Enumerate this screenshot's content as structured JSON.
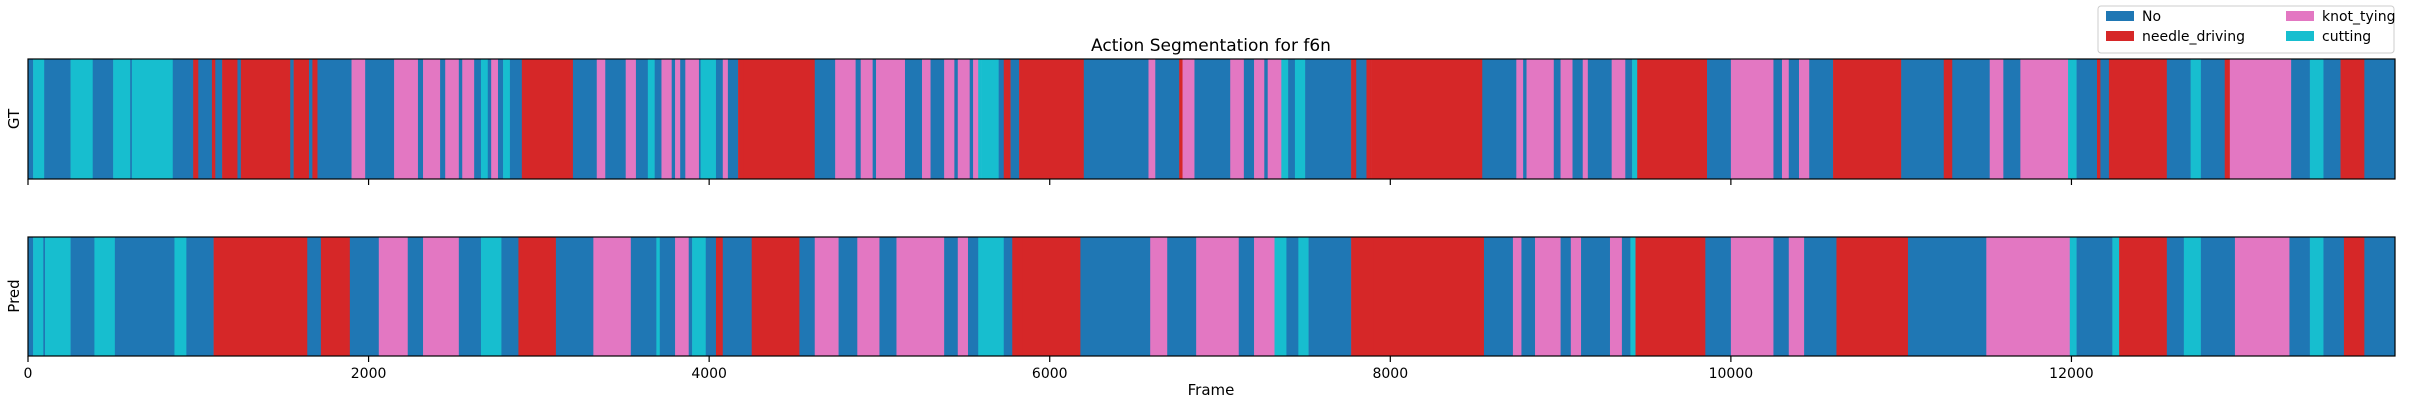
{
  "chart_data": {
    "type": "action-segmentation",
    "title": "Action Segmentation for f6n",
    "xlabel": "Frame",
    "xlim": [
      0,
      13900
    ],
    "xticks": [
      0,
      2000,
      4000,
      6000,
      8000,
      10000,
      12000
    ],
    "tick_labels": [
      "0",
      "2000",
      "4000",
      "6000",
      "8000",
      "10000",
      "12000"
    ],
    "grid": false,
    "legend_position": "top-right",
    "classes": [
      {
        "id": 0,
        "name": "No",
        "color": "#1f77b4"
      },
      {
        "id": 1,
        "name": "needle_driving",
        "color": "#d62728"
      },
      {
        "id": 2,
        "name": "knot_tying",
        "color": "#e377c2"
      },
      {
        "id": 3,
        "name": "cutting",
        "color": "#17becf"
      }
    ],
    "rows": [
      {
        "name": "GT",
        "segments": [
          [
            0,
            30,
            0
          ],
          [
            30,
            95,
            3
          ],
          [
            95,
            250,
            0
          ],
          [
            250,
            380,
            3
          ],
          [
            380,
            500,
            0
          ],
          [
            500,
            600,
            3
          ],
          [
            600,
            610,
            0
          ],
          [
            610,
            850,
            3
          ],
          [
            850,
            970,
            0
          ],
          [
            970,
            1000,
            1
          ],
          [
            1000,
            1080,
            0
          ],
          [
            1080,
            1100,
            1
          ],
          [
            1100,
            1140,
            0
          ],
          [
            1140,
            1230,
            1
          ],
          [
            1230,
            1250,
            0
          ],
          [
            1250,
            1540,
            1
          ],
          [
            1540,
            1560,
            0
          ],
          [
            1560,
            1650,
            1
          ],
          [
            1650,
            1670,
            0
          ],
          [
            1670,
            1700,
            1
          ],
          [
            1700,
            1900,
            0
          ],
          [
            1900,
            1980,
            2
          ],
          [
            1980,
            2150,
            0
          ],
          [
            2150,
            2290,
            2
          ],
          [
            2290,
            2320,
            0
          ],
          [
            2320,
            2420,
            2
          ],
          [
            2420,
            2450,
            0
          ],
          [
            2450,
            2530,
            2
          ],
          [
            2530,
            2550,
            0
          ],
          [
            2550,
            2620,
            2
          ],
          [
            2620,
            2660,
            0
          ],
          [
            2660,
            2700,
            3
          ],
          [
            2700,
            2720,
            0
          ],
          [
            2720,
            2760,
            2
          ],
          [
            2760,
            2790,
            0
          ],
          [
            2790,
            2830,
            3
          ],
          [
            2830,
            2900,
            0
          ],
          [
            2900,
            3200,
            1
          ],
          [
            3200,
            3340,
            0
          ],
          [
            3340,
            3390,
            2
          ],
          [
            3390,
            3510,
            0
          ],
          [
            3510,
            3570,
            2
          ],
          [
            3570,
            3640,
            0
          ],
          [
            3640,
            3680,
            3
          ],
          [
            3680,
            3720,
            0
          ],
          [
            3720,
            3780,
            2
          ],
          [
            3780,
            3800,
            0
          ],
          [
            3800,
            3830,
            2
          ],
          [
            3830,
            3860,
            0
          ],
          [
            3860,
            3940,
            2
          ],
          [
            3940,
            3950,
            0
          ],
          [
            3950,
            4040,
            3
          ],
          [
            4040,
            4080,
            0
          ],
          [
            4080,
            4110,
            2
          ],
          [
            4110,
            4170,
            0
          ],
          [
            4170,
            4200,
            1
          ],
          [
            4200,
            4620,
            1
          ],
          [
            4620,
            4740,
            0
          ],
          [
            4740,
            4860,
            2
          ],
          [
            4860,
            4890,
            0
          ],
          [
            4890,
            4960,
            2
          ],
          [
            4960,
            4980,
            0
          ],
          [
            4980,
            5150,
            2
          ],
          [
            5150,
            5250,
            0
          ],
          [
            5250,
            5300,
            2
          ],
          [
            5300,
            5380,
            0
          ],
          [
            5380,
            5440,
            2
          ],
          [
            5440,
            5460,
            0
          ],
          [
            5460,
            5530,
            2
          ],
          [
            5530,
            5550,
            0
          ],
          [
            5550,
            5580,
            2
          ],
          [
            5580,
            5600,
            3
          ],
          [
            5600,
            5700,
            3
          ],
          [
            5700,
            5730,
            0
          ],
          [
            5730,
            5770,
            1
          ],
          [
            5770,
            5820,
            0
          ],
          [
            5820,
            6200,
            1
          ],
          [
            6200,
            6580,
            0
          ],
          [
            6580,
            6620,
            2
          ],
          [
            6620,
            6760,
            0
          ],
          [
            6760,
            6780,
            1
          ],
          [
            6780,
            6850,
            2
          ],
          [
            6850,
            7060,
            0
          ],
          [
            7060,
            7140,
            2
          ],
          [
            7140,
            7200,
            0
          ],
          [
            7200,
            7260,
            2
          ],
          [
            7260,
            7280,
            0
          ],
          [
            7280,
            7360,
            2
          ],
          [
            7360,
            7400,
            3
          ],
          [
            7400,
            7440,
            0
          ],
          [
            7440,
            7500,
            3
          ],
          [
            7500,
            7770,
            0
          ],
          [
            7770,
            7800,
            1
          ],
          [
            7800,
            7860,
            0
          ],
          [
            7860,
            7890,
            1
          ],
          [
            7890,
            8540,
            1
          ],
          [
            8540,
            8740,
            0
          ],
          [
            8740,
            8780,
            2
          ],
          [
            8780,
            8800,
            0
          ],
          [
            8800,
            8960,
            2
          ],
          [
            8960,
            9000,
            0
          ],
          [
            9000,
            9070,
            2
          ],
          [
            9070,
            9130,
            0
          ],
          [
            9130,
            9160,
            2
          ],
          [
            9160,
            9300,
            0
          ],
          [
            9300,
            9380,
            2
          ],
          [
            9380,
            9420,
            0
          ],
          [
            9420,
            9450,
            3
          ],
          [
            9450,
            9860,
            1
          ],
          [
            9860,
            10000,
            0
          ],
          [
            10000,
            10250,
            2
          ],
          [
            10250,
            10300,
            0
          ],
          [
            10300,
            10340,
            2
          ],
          [
            10340,
            10400,
            0
          ],
          [
            10400,
            10460,
            2
          ],
          [
            10460,
            10600,
            0
          ],
          [
            10600,
            11000,
            1
          ],
          [
            11000,
            11250,
            0
          ],
          [
            11250,
            11300,
            1
          ],
          [
            11300,
            11520,
            0
          ],
          [
            11520,
            11600,
            2
          ],
          [
            11600,
            11700,
            0
          ],
          [
            11700,
            11980,
            2
          ],
          [
            11980,
            12030,
            3
          ],
          [
            12030,
            12150,
            0
          ],
          [
            12150,
            12170,
            1
          ],
          [
            12170,
            12220,
            0
          ],
          [
            12220,
            12560,
            1
          ],
          [
            12560,
            12700,
            0
          ],
          [
            12700,
            12760,
            3
          ],
          [
            12760,
            12900,
            0
          ],
          [
            12900,
            12930,
            1
          ],
          [
            12930,
            13290,
            2
          ],
          [
            13290,
            13400,
            0
          ],
          [
            13400,
            13480,
            3
          ],
          [
            13480,
            13580,
            0
          ],
          [
            13580,
            13720,
            1
          ],
          [
            13720,
            13900,
            0
          ]
        ]
      },
      {
        "name": "Pred",
        "segments": [
          [
            0,
            30,
            0
          ],
          [
            30,
            90,
            3
          ],
          [
            90,
            100,
            0
          ],
          [
            100,
            250,
            3
          ],
          [
            250,
            390,
            0
          ],
          [
            390,
            510,
            3
          ],
          [
            510,
            860,
            0
          ],
          [
            860,
            930,
            3
          ],
          [
            930,
            1090,
            0
          ],
          [
            1090,
            1640,
            1
          ],
          [
            1640,
            1720,
            0
          ],
          [
            1720,
            1890,
            1
          ],
          [
            1890,
            2060,
            0
          ],
          [
            2060,
            2230,
            2
          ],
          [
            2230,
            2320,
            0
          ],
          [
            2320,
            2530,
            2
          ],
          [
            2530,
            2660,
            0
          ],
          [
            2660,
            2780,
            3
          ],
          [
            2780,
            2880,
            0
          ],
          [
            2880,
            3100,
            1
          ],
          [
            3100,
            3320,
            0
          ],
          [
            3320,
            3540,
            2
          ],
          [
            3540,
            3690,
            0
          ],
          [
            3690,
            3710,
            3
          ],
          [
            3710,
            3800,
            0
          ],
          [
            3800,
            3880,
            2
          ],
          [
            3880,
            3900,
            0
          ],
          [
            3900,
            3980,
            3
          ],
          [
            3980,
            4040,
            0
          ],
          [
            4040,
            4080,
            1
          ],
          [
            4080,
            4250,
            0
          ],
          [
            4250,
            4530,
            1
          ],
          [
            4530,
            4620,
            0
          ],
          [
            4620,
            4760,
            2
          ],
          [
            4760,
            4870,
            0
          ],
          [
            4870,
            5000,
            2
          ],
          [
            5000,
            5100,
            0
          ],
          [
            5100,
            5380,
            2
          ],
          [
            5380,
            5460,
            0
          ],
          [
            5460,
            5520,
            2
          ],
          [
            5520,
            5580,
            0
          ],
          [
            5580,
            5730,
            3
          ],
          [
            5730,
            5780,
            0
          ],
          [
            5780,
            5840,
            1
          ],
          [
            5840,
            6180,
            1
          ],
          [
            6180,
            6590,
            0
          ],
          [
            6590,
            6690,
            2
          ],
          [
            6690,
            6860,
            0
          ],
          [
            6860,
            7110,
            2
          ],
          [
            7110,
            7200,
            0
          ],
          [
            7200,
            7320,
            2
          ],
          [
            7320,
            7390,
            3
          ],
          [
            7390,
            7460,
            0
          ],
          [
            7460,
            7520,
            3
          ],
          [
            7520,
            7770,
            0
          ],
          [
            7770,
            7900,
            1
          ],
          [
            7900,
            8550,
            1
          ],
          [
            8550,
            8720,
            0
          ],
          [
            8720,
            8770,
            2
          ],
          [
            8770,
            8850,
            0
          ],
          [
            8850,
            9000,
            2
          ],
          [
            9000,
            9060,
            0
          ],
          [
            9060,
            9120,
            2
          ],
          [
            9120,
            9290,
            0
          ],
          [
            9290,
            9360,
            2
          ],
          [
            9360,
            9410,
            0
          ],
          [
            9410,
            9440,
            3
          ],
          [
            9440,
            9850,
            1
          ],
          [
            9850,
            10000,
            0
          ],
          [
            10000,
            10250,
            2
          ],
          [
            10250,
            10340,
            0
          ],
          [
            10340,
            10430,
            2
          ],
          [
            10430,
            10620,
            0
          ],
          [
            10620,
            11040,
            1
          ],
          [
            11040,
            11500,
            0
          ],
          [
            11500,
            11990,
            2
          ],
          [
            11990,
            12030,
            3
          ],
          [
            12030,
            12240,
            0
          ],
          [
            12240,
            12280,
            3
          ],
          [
            12280,
            12560,
            1
          ],
          [
            12560,
            12660,
            0
          ],
          [
            12660,
            12760,
            3
          ],
          [
            12760,
            12960,
            0
          ],
          [
            12960,
            13280,
            2
          ],
          [
            13280,
            13400,
            0
          ],
          [
            13400,
            13480,
            3
          ],
          [
            13480,
            13600,
            0
          ],
          [
            13600,
            13720,
            1
          ],
          [
            13720,
            13900,
            0
          ]
        ]
      }
    ]
  }
}
